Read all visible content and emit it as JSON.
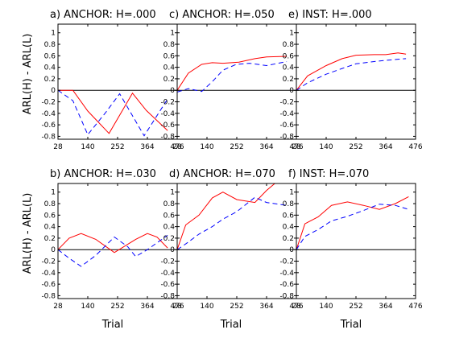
{
  "figure": {
    "ylabel": "ARL(H) - ARL(L)",
    "xlabel": "Trial"
  },
  "chart_data": [
    {
      "type": "line",
      "title": "a)  ANCHOR: H=.000",
      "x_ticks": [
        28,
        140,
        252,
        364,
        476
      ],
      "xlim": [
        28,
        476
      ],
      "y_ticks": [
        -0.8,
        -0.6,
        -0.4,
        -0.2,
        0,
        0.2,
        0.4,
        0.6,
        0.8,
        1
      ],
      "y_tick_labels": [
        "-0.8",
        "-0.6",
        "-0.4",
        "-0.2",
        "0",
        "0.2",
        "0.4",
        "0.6",
        "0.8",
        "1"
      ],
      "ylim": [
        -0.85,
        1.15
      ],
      "series": [
        {
          "color": "#ff0000",
          "dash": "solid",
          "points": [
            [
              28,
              0
            ],
            [
              84,
              0
            ],
            [
              140,
              -0.36
            ],
            [
              220,
              -0.75
            ],
            [
              308,
              -0.05
            ],
            [
              360,
              -0.35
            ],
            [
              440,
              -0.7
            ]
          ]
        },
        {
          "color": "#0000ff",
          "dash": "dashed",
          "points": [
            [
              28,
              0
            ],
            [
              84,
              -0.18
            ],
            [
              140,
              -0.77
            ],
            [
              208,
              -0.38
            ],
            [
              260,
              -0.06
            ],
            [
              352,
              -0.79
            ],
            [
              440,
              -0.15
            ]
          ]
        }
      ]
    },
    {
      "type": "line",
      "title": "c)  ANCHOR: H=.050",
      "x_ticks": [
        28,
        140,
        252,
        364,
        476
      ],
      "xlim": [
        28,
        476
      ],
      "y_ticks": [
        -0.8,
        -0.6,
        -0.4,
        -0.2,
        0,
        0.2,
        0.4,
        0.6,
        0.8,
        1
      ],
      "y_tick_labels": [
        "-0.8",
        "-0.6",
        "-0.4",
        "-0.2",
        "0",
        "0.2",
        "0.4",
        "0.6",
        "0.8",
        "1"
      ],
      "ylim": [
        -0.85,
        1.15
      ],
      "series": [
        {
          "color": "#ff0000",
          "dash": "solid",
          "points": [
            [
              28,
              0
            ],
            [
              70,
              0.3
            ],
            [
              120,
              0.45
            ],
            [
              160,
              0.48
            ],
            [
              200,
              0.47
            ],
            [
              260,
              0.49
            ],
            [
              320,
              0.55
            ],
            [
              364,
              0.58
            ],
            [
              440,
              0.59
            ]
          ]
        },
        {
          "color": "#0000ff",
          "dash": "dashed",
          "points": [
            [
              28,
              -0.03
            ],
            [
              70,
              0.03
            ],
            [
              120,
              -0.02
            ],
            [
              160,
              0.15
            ],
            [
              200,
              0.35
            ],
            [
              250,
              0.45
            ],
            [
              300,
              0.47
            ],
            [
              364,
              0.43
            ],
            [
              440,
              0.5
            ]
          ]
        }
      ]
    },
    {
      "type": "line",
      "title": "e)  INST: H=.000",
      "x_ticks": [
        28,
        140,
        252,
        364,
        476
      ],
      "xlim": [
        28,
        476
      ],
      "y_ticks": [
        -0.8,
        -0.6,
        -0.4,
        -0.2,
        0,
        0.2,
        0.4,
        0.6,
        0.8,
        1
      ],
      "y_tick_labels": [
        "-0.8",
        "-0.6",
        "-0.4",
        "-0.2",
        "0",
        "0.2",
        "0.4",
        "0.6",
        "0.8",
        "1"
      ],
      "ylim": [
        -0.85,
        1.15
      ],
      "series": [
        {
          "color": "#ff0000",
          "dash": "solid",
          "points": [
            [
              28,
              0
            ],
            [
              70,
              0.25
            ],
            [
              140,
              0.43
            ],
            [
              200,
              0.55
            ],
            [
              252,
              0.61
            ],
            [
              320,
              0.62
            ],
            [
              364,
              0.62
            ],
            [
              410,
              0.65
            ],
            [
              440,
              0.63
            ]
          ]
        },
        {
          "color": "#0000ff",
          "dash": "dashed",
          "points": [
            [
              28,
              0
            ],
            [
              70,
              0.13
            ],
            [
              140,
              0.28
            ],
            [
              200,
              0.38
            ],
            [
              252,
              0.46
            ],
            [
              320,
              0.5
            ],
            [
              364,
              0.52
            ],
            [
              410,
              0.54
            ],
            [
              440,
              0.55
            ]
          ]
        }
      ]
    },
    {
      "type": "line",
      "title": "b)  ANCHOR: H=.030",
      "x_ticks": [
        28,
        140,
        252,
        364,
        476
      ],
      "xlim": [
        28,
        476
      ],
      "y_ticks": [
        -0.8,
        -0.6,
        -0.4,
        -0.2,
        0,
        0.2,
        0.4,
        0.6,
        0.8,
        1
      ],
      "y_tick_labels": [
        "-0.8",
        "-0.6",
        "-0.4",
        "-0.2",
        "0",
        "0.2",
        "0.4",
        "0.6",
        "0.8",
        "1"
      ],
      "ylim": [
        -0.85,
        1.15
      ],
      "series": [
        {
          "color": "#ff0000",
          "dash": "solid",
          "points": [
            [
              28,
              0
            ],
            [
              70,
              0.2
            ],
            [
              115,
              0.28
            ],
            [
              170,
              0.18
            ],
            [
              240,
              -0.05
            ],
            [
              320,
              0.18
            ],
            [
              364,
              0.28
            ],
            [
              400,
              0.22
            ],
            [
              440,
              0.03
            ]
          ]
        },
        {
          "color": "#0000ff",
          "dash": "dashed",
          "points": [
            [
              28,
              0
            ],
            [
              70,
              -0.15
            ],
            [
              115,
              -0.29
            ],
            [
              170,
              -0.1
            ],
            [
              240,
              0.22
            ],
            [
              290,
              0.05
            ],
            [
              320,
              -0.12
            ],
            [
              364,
              0.0
            ],
            [
              440,
              0.25
            ]
          ]
        }
      ]
    },
    {
      "type": "line",
      "title": "d)  ANCHOR: H=.070",
      "x_ticks": [
        28,
        140,
        252,
        364,
        476
      ],
      "xlim": [
        28,
        476
      ],
      "y_ticks": [
        -0.8,
        -0.6,
        -0.4,
        -0.2,
        0,
        0.2,
        0.4,
        0.6,
        0.8,
        1
      ],
      "y_tick_labels": [
        "-0.8",
        "-0.6",
        "-0.4",
        "-0.2",
        "0",
        "0.2",
        "0.4",
        "0.6",
        "0.8",
        "1"
      ],
      "ylim": [
        -0.85,
        1.15
      ],
      "series": [
        {
          "color": "#ff0000",
          "dash": "solid",
          "points": [
            [
              28,
              0
            ],
            [
              60,
              0.43
            ],
            [
              110,
              0.6
            ],
            [
              160,
              0.9
            ],
            [
              200,
              1.0
            ],
            [
              252,
              0.87
            ],
            [
              320,
              0.82
            ],
            [
              364,
              1.03
            ],
            [
              400,
              1.17
            ]
          ]
        },
        {
          "color": "#0000ff",
          "dash": "dashed",
          "points": [
            [
              28,
              0
            ],
            [
              60,
              0.1
            ],
            [
              110,
              0.27
            ],
            [
              160,
              0.4
            ],
            [
              200,
              0.53
            ],
            [
              252,
              0.66
            ],
            [
              320,
              0.91
            ],
            [
              364,
              0.82
            ],
            [
              440,
              0.77
            ]
          ]
        }
      ]
    },
    {
      "type": "line",
      "title": "f)  INST: H=.070",
      "x_ticks": [
        28,
        140,
        252,
        364,
        476
      ],
      "xlim": [
        28,
        476
      ],
      "y_ticks": [
        -0.8,
        -0.6,
        -0.4,
        -0.2,
        0,
        0.2,
        0.4,
        0.6,
        0.8,
        1
      ],
      "y_tick_labels": [
        "-0.8",
        "-0.6",
        "-0.4",
        "-0.2",
        "0",
        "0.2",
        "0.4",
        "0.6",
        "0.8",
        "1"
      ],
      "ylim": [
        -0.85,
        1.15
      ],
      "series": [
        {
          "color": "#ff0000",
          "dash": "solid",
          "points": [
            [
              28,
              0
            ],
            [
              60,
              0.45
            ],
            [
              110,
              0.57
            ],
            [
              160,
              0.77
            ],
            [
              220,
              0.83
            ],
            [
              280,
              0.77
            ],
            [
              340,
              0.7
            ],
            [
              400,
              0.8
            ],
            [
              450,
              0.92
            ]
          ]
        },
        {
          "color": "#0000ff",
          "dash": "dashed",
          "points": [
            [
              28,
              0
            ],
            [
              60,
              0.23
            ],
            [
              110,
              0.35
            ],
            [
              160,
              0.5
            ],
            [
              220,
              0.58
            ],
            [
              280,
              0.68
            ],
            [
              340,
              0.79
            ],
            [
              400,
              0.77
            ],
            [
              450,
              0.7
            ]
          ]
        }
      ]
    }
  ]
}
